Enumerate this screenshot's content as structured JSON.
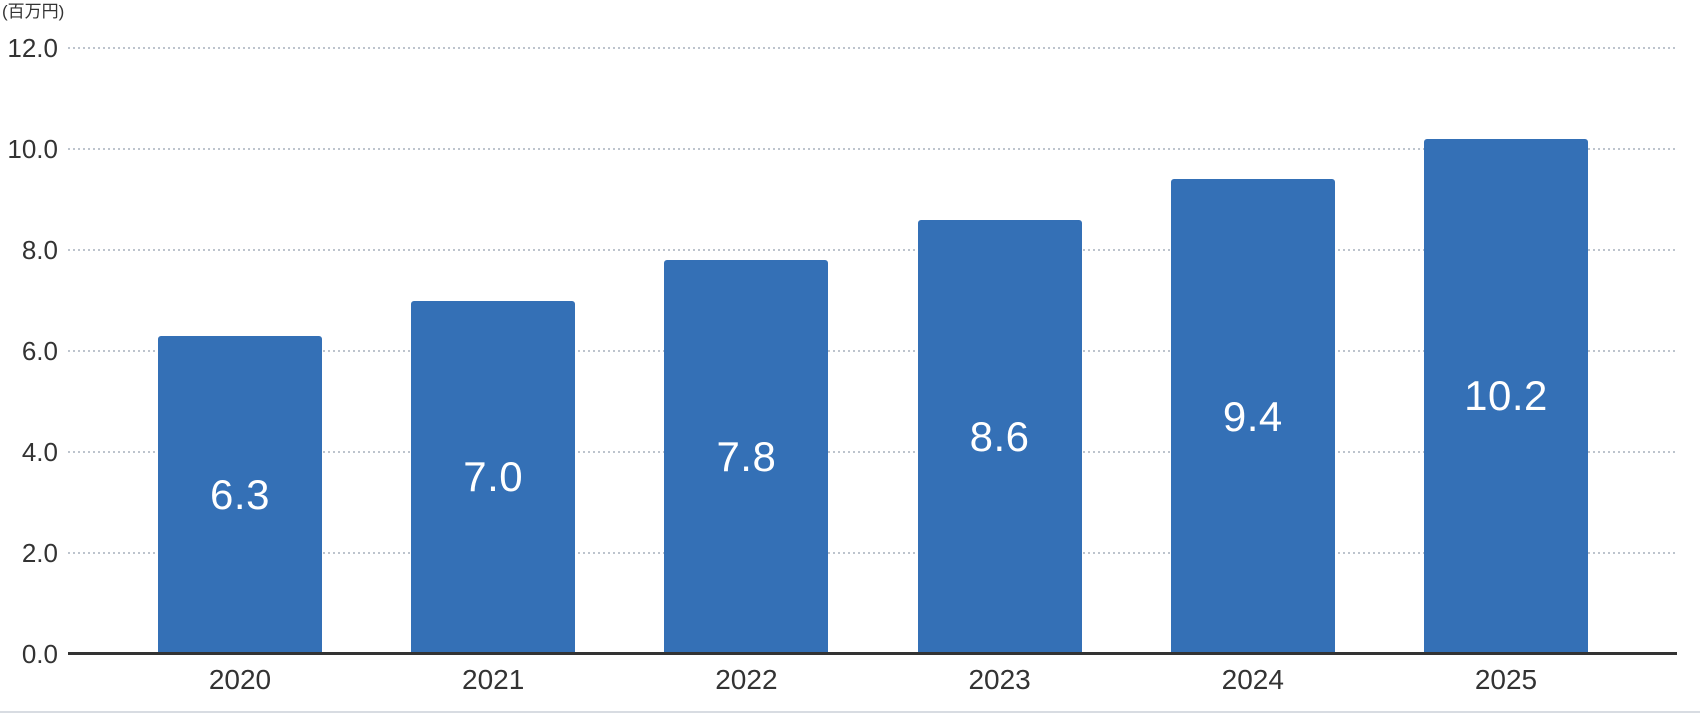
{
  "colors": {
    "bar": "#3470B6",
    "grid": "#BDC4CD",
    "axis": "#333333",
    "tick_text": "#333333",
    "data_label_text": "#FFFFFF",
    "page_border": "#D8DCE2"
  },
  "chart_data": {
    "type": "bar",
    "title": "",
    "unit_label": "(百万円)",
    "categories": [
      "2020",
      "2021",
      "2022",
      "2023",
      "2024",
      "2025"
    ],
    "values": [
      6.3,
      7.0,
      7.8,
      8.6,
      9.4,
      10.2
    ],
    "data_labels": [
      "6.3",
      "7.0",
      "7.8",
      "8.6",
      "9.4",
      "10.2"
    ],
    "y_ticks": [
      {
        "value": 0,
        "label": "0.0"
      },
      {
        "value": 2,
        "label": "2.0"
      },
      {
        "value": 4,
        "label": "4.0"
      },
      {
        "value": 6,
        "label": "6.0"
      },
      {
        "value": 8,
        "label": "8.0"
      },
      {
        "value": 10,
        "label": "10.0"
      },
      {
        "value": 12,
        "label": "12.0"
      }
    ],
    "ylim": [
      0,
      12
    ],
    "xlabel": "",
    "ylabel": "(百万円)",
    "grid": true,
    "legend": false,
    "bar_color": "#3470B6",
    "data_label_position": "center"
  }
}
